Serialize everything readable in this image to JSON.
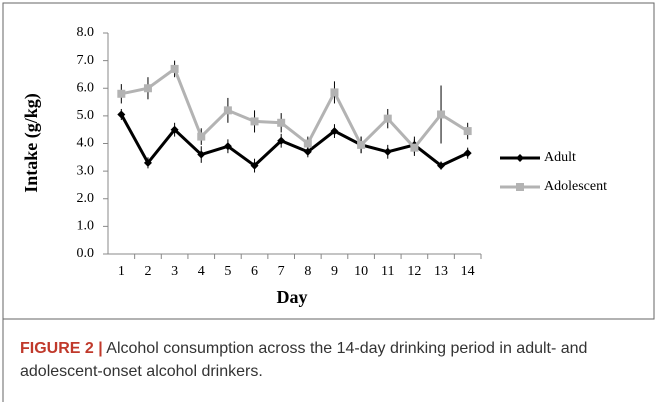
{
  "chart_data": {
    "type": "line",
    "xlabel": "Day",
    "ylabel": "Intake (g/kg)",
    "categories": [
      1,
      2,
      3,
      4,
      5,
      6,
      7,
      8,
      9,
      10,
      11,
      12,
      13,
      14
    ],
    "series": [
      {
        "name": "Adult",
        "color": "#000000",
        "marker": "diamond",
        "values": [
          5.05,
          3.3,
          4.5,
          3.6,
          3.9,
          3.2,
          4.1,
          3.7,
          4.45,
          3.95,
          3.7,
          3.95,
          3.2,
          3.65
        ],
        "errors": [
          0.2,
          0.2,
          0.25,
          0.3,
          0.25,
          0.25,
          0.25,
          0.2,
          0.25,
          0.3,
          0.25,
          0.3,
          0.15,
          0.2
        ]
      },
      {
        "name": "Adolescent",
        "color": "#b3b3b3",
        "marker": "square",
        "values": [
          5.8,
          6.0,
          6.7,
          4.25,
          5.2,
          4.8,
          4.75,
          4.0,
          5.85,
          3.95,
          4.9,
          3.85,
          5.05,
          4.45
        ],
        "errors": [
          0.35,
          0.4,
          0.3,
          0.3,
          0.45,
          0.4,
          0.35,
          0.25,
          0.4,
          0.3,
          0.35,
          0.3,
          1.05,
          0.3
        ]
      }
    ],
    "ylim": [
      0,
      8
    ],
    "yticks": [
      {
        "value": 0,
        "label": "0.0"
      },
      {
        "value": 1,
        "label": "1.0"
      },
      {
        "value": 2,
        "label": "2.0"
      },
      {
        "value": 3,
        "label": "3.0"
      },
      {
        "value": 4,
        "label": "4.0"
      },
      {
        "value": 5,
        "label": "5.0"
      },
      {
        "value": 6,
        "label": "6.0"
      },
      {
        "value": 7,
        "label": "7.0"
      },
      {
        "value": 8,
        "label": "8.0"
      }
    ],
    "legend": "right",
    "caption": {
      "label": "FIGURE 2 |",
      "text": "Alcohol consumption across the 14-day drinking period in adult- and adolescent-onset alcohol drinkers."
    }
  }
}
